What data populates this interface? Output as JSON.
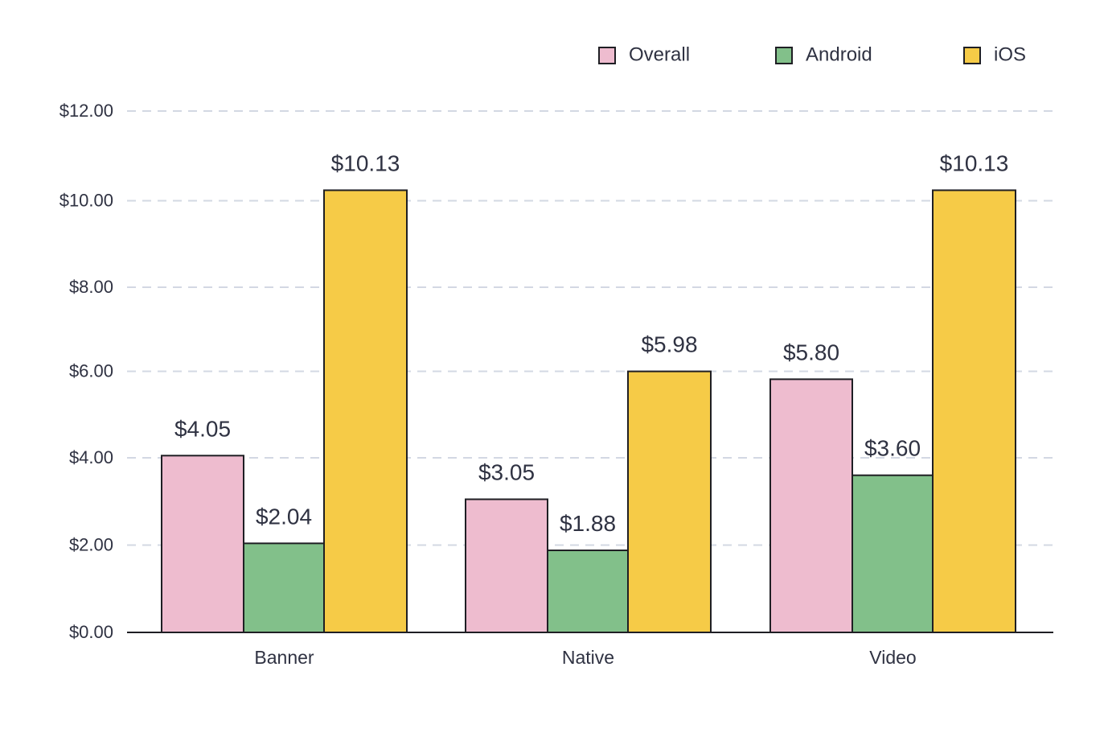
{
  "chart_data": {
    "type": "bar",
    "categories": [
      "Banner",
      "Native",
      "Video"
    ],
    "series": [
      {
        "name": "Overall",
        "color": "#EEBCCF",
        "values": [
          4.05,
          3.05,
          5.8
        ],
        "labels": [
          "$4.05",
          "$3.05",
          "$5.80"
        ]
      },
      {
        "name": "Android",
        "color": "#82C08A",
        "values": [
          2.04,
          1.88,
          3.6
        ],
        "labels": [
          "$2.04",
          "$1.88",
          "$3.60"
        ]
      },
      {
        "name": "iOS",
        "color": "#F6CB47",
        "values": [
          10.13,
          5.98,
          10.13
        ],
        "labels": [
          "$10.13",
          "$5.98",
          "$10.13"
        ]
      }
    ],
    "y_ticks": [
      0,
      2,
      4,
      6,
      8,
      10,
      12
    ],
    "y_tick_labels": [
      "$0.00",
      "$2.00",
      "$4.00",
      "$6.00",
      "$8.00",
      "$10.00",
      "$12.00"
    ],
    "ylim": [
      0,
      12
    ],
    "title": "",
    "xlabel": "",
    "ylabel": "",
    "grid": true,
    "legend_position": "top-right"
  }
}
